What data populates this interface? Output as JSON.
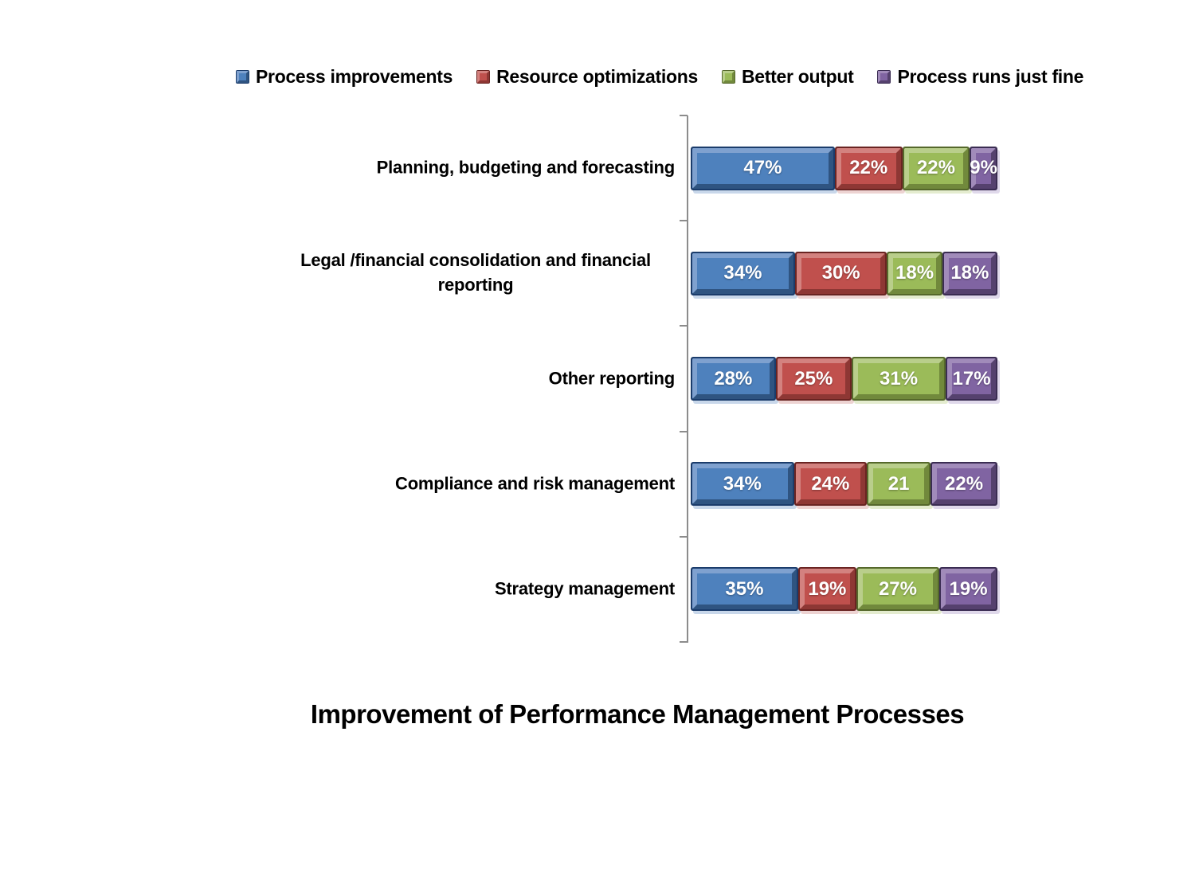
{
  "background": "#FFFFFF",
  "chart_data": {
    "type": "bar",
    "subtype": "stacked-horizontal-percent",
    "title": "Improvement of Performance Management Processes",
    "legend_position": "top",
    "grid": false,
    "axis": {
      "color": "#8C8C8C",
      "tick_count": 6,
      "side": "left"
    },
    "xlim": [
      0,
      100
    ],
    "categories": [
      "Planning, budgeting and forecasting",
      "Legal /financial consolidation and financial reporting",
      "Other reporting",
      "Compliance and risk management",
      "Strategy management"
    ],
    "series": [
      {
        "name": "Process improvements",
        "values": [
          47,
          34,
          28,
          34,
          35
        ],
        "labels": [
          "47%",
          "34%",
          "28%",
          "34%",
          "35%"
        ],
        "colors": {
          "main": "#4E81BD",
          "light": "#7FA1CF",
          "dark": "#2F5481",
          "edge": "#1B3C6B",
          "shadow": "#C8D7EA"
        }
      },
      {
        "name": "Resource optimizations",
        "values": [
          22,
          30,
          25,
          24,
          19
        ],
        "labels": [
          "22%",
          "30%",
          "25%",
          "24%",
          "19%"
        ],
        "colors": {
          "main": "#C0504D",
          "light": "#D3827F",
          "dark": "#8E3734",
          "edge": "#6A2422",
          "shadow": "#EDD3D2"
        }
      },
      {
        "name": "Better output",
        "values": [
          22,
          18,
          31,
          21,
          27
        ],
        "labels": [
          "22%",
          "18%",
          "31%",
          "21",
          "27%"
        ],
        "colors": {
          "main": "#9BBB59",
          "light": "#B9CE8B",
          "dark": "#71893C",
          "edge": "#55682B",
          "shadow": "#E4ECCF"
        }
      },
      {
        "name": "Process runs just fine",
        "values": [
          9,
          18,
          17,
          22,
          19
        ],
        "labels": [
          "9%",
          "18%",
          "17%",
          "22%",
          "19%"
        ],
        "colors": {
          "main": "#8064A2",
          "light": "#A18BBA",
          "dark": "#55416E",
          "edge": "#3A2C52",
          "shadow": "#DFD8EA"
        }
      }
    ]
  }
}
